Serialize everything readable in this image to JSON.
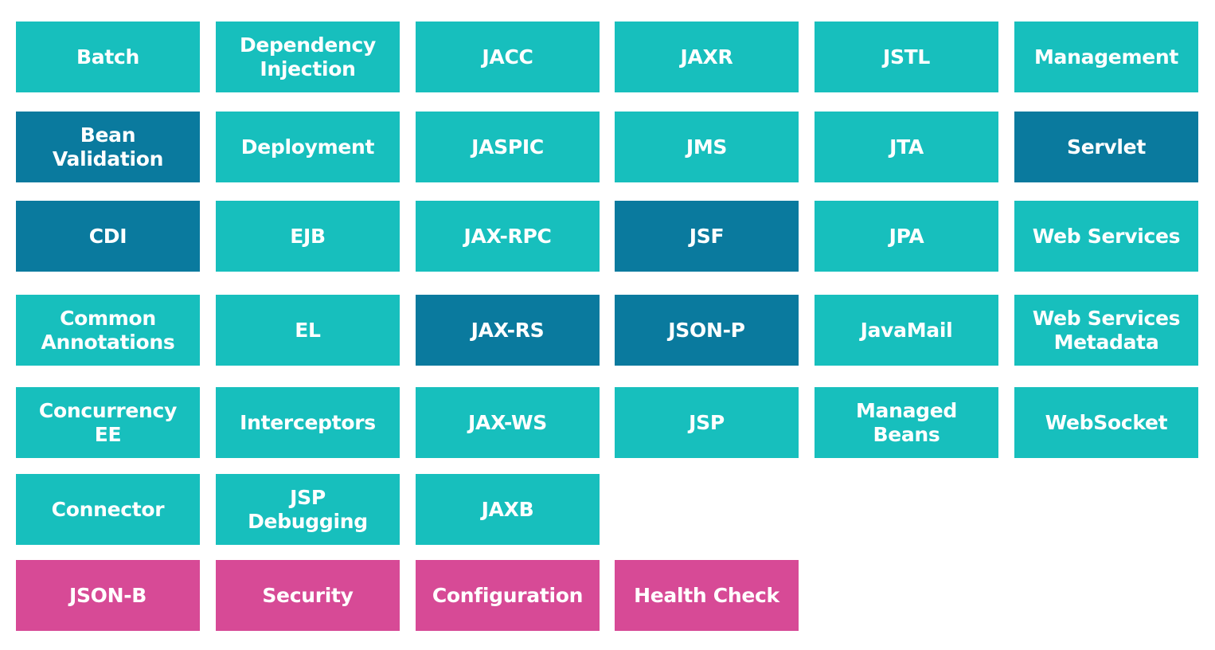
{
  "colors": {
    "standard": "#17bfbd",
    "updated": "#0a7a9e",
    "new": "#d74a96"
  },
  "tiles": [
    {
      "label": "Batch",
      "status": "standard"
    },
    {
      "label": "Dependency\nInjection",
      "status": "standard"
    },
    {
      "label": "JACC",
      "status": "standard"
    },
    {
      "label": "JAXR",
      "status": "standard"
    },
    {
      "label": "JSTL",
      "status": "standard"
    },
    {
      "label": "Management",
      "status": "standard"
    },
    {
      "label": "Bean\nValidation",
      "status": "updated"
    },
    {
      "label": "Deployment",
      "status": "standard"
    },
    {
      "label": "JASPIC",
      "status": "standard"
    },
    {
      "label": "JMS",
      "status": "standard"
    },
    {
      "label": "JTA",
      "status": "standard"
    },
    {
      "label": "Servlet",
      "status": "updated"
    },
    {
      "label": "CDI",
      "status": "updated"
    },
    {
      "label": "EJB",
      "status": "standard"
    },
    {
      "label": "JAX-RPC",
      "status": "standard"
    },
    {
      "label": "JSF",
      "status": "updated"
    },
    {
      "label": "JPA",
      "status": "standard"
    },
    {
      "label": "Web Services",
      "status": "standard"
    },
    {
      "label": "Common\nAnnotations",
      "status": "standard"
    },
    {
      "label": "EL",
      "status": "standard"
    },
    {
      "label": "JAX-RS",
      "status": "updated"
    },
    {
      "label": "JSON-P",
      "status": "updated"
    },
    {
      "label": "JavaMail",
      "status": "standard"
    },
    {
      "label": "Web Services\nMetadata",
      "status": "standard"
    },
    {
      "label": "Concurrency\nEE",
      "status": "standard"
    },
    {
      "label": "Interceptors",
      "status": "standard"
    },
    {
      "label": "JAX-WS",
      "status": "standard"
    },
    {
      "label": "JSP",
      "status": "standard"
    },
    {
      "label": "Managed\nBeans",
      "status": "standard"
    },
    {
      "label": "WebSocket",
      "status": "standard"
    },
    {
      "label": "Connector",
      "status": "standard"
    },
    {
      "label": "JSP\nDebugging",
      "status": "standard"
    },
    {
      "label": "JAXB",
      "status": "standard"
    },
    {
      "label": "JSON-B",
      "status": "new"
    },
    {
      "label": "Security",
      "status": "new"
    },
    {
      "label": "Configuration",
      "status": "new"
    },
    {
      "label": "Health Check",
      "status": "new"
    }
  ]
}
